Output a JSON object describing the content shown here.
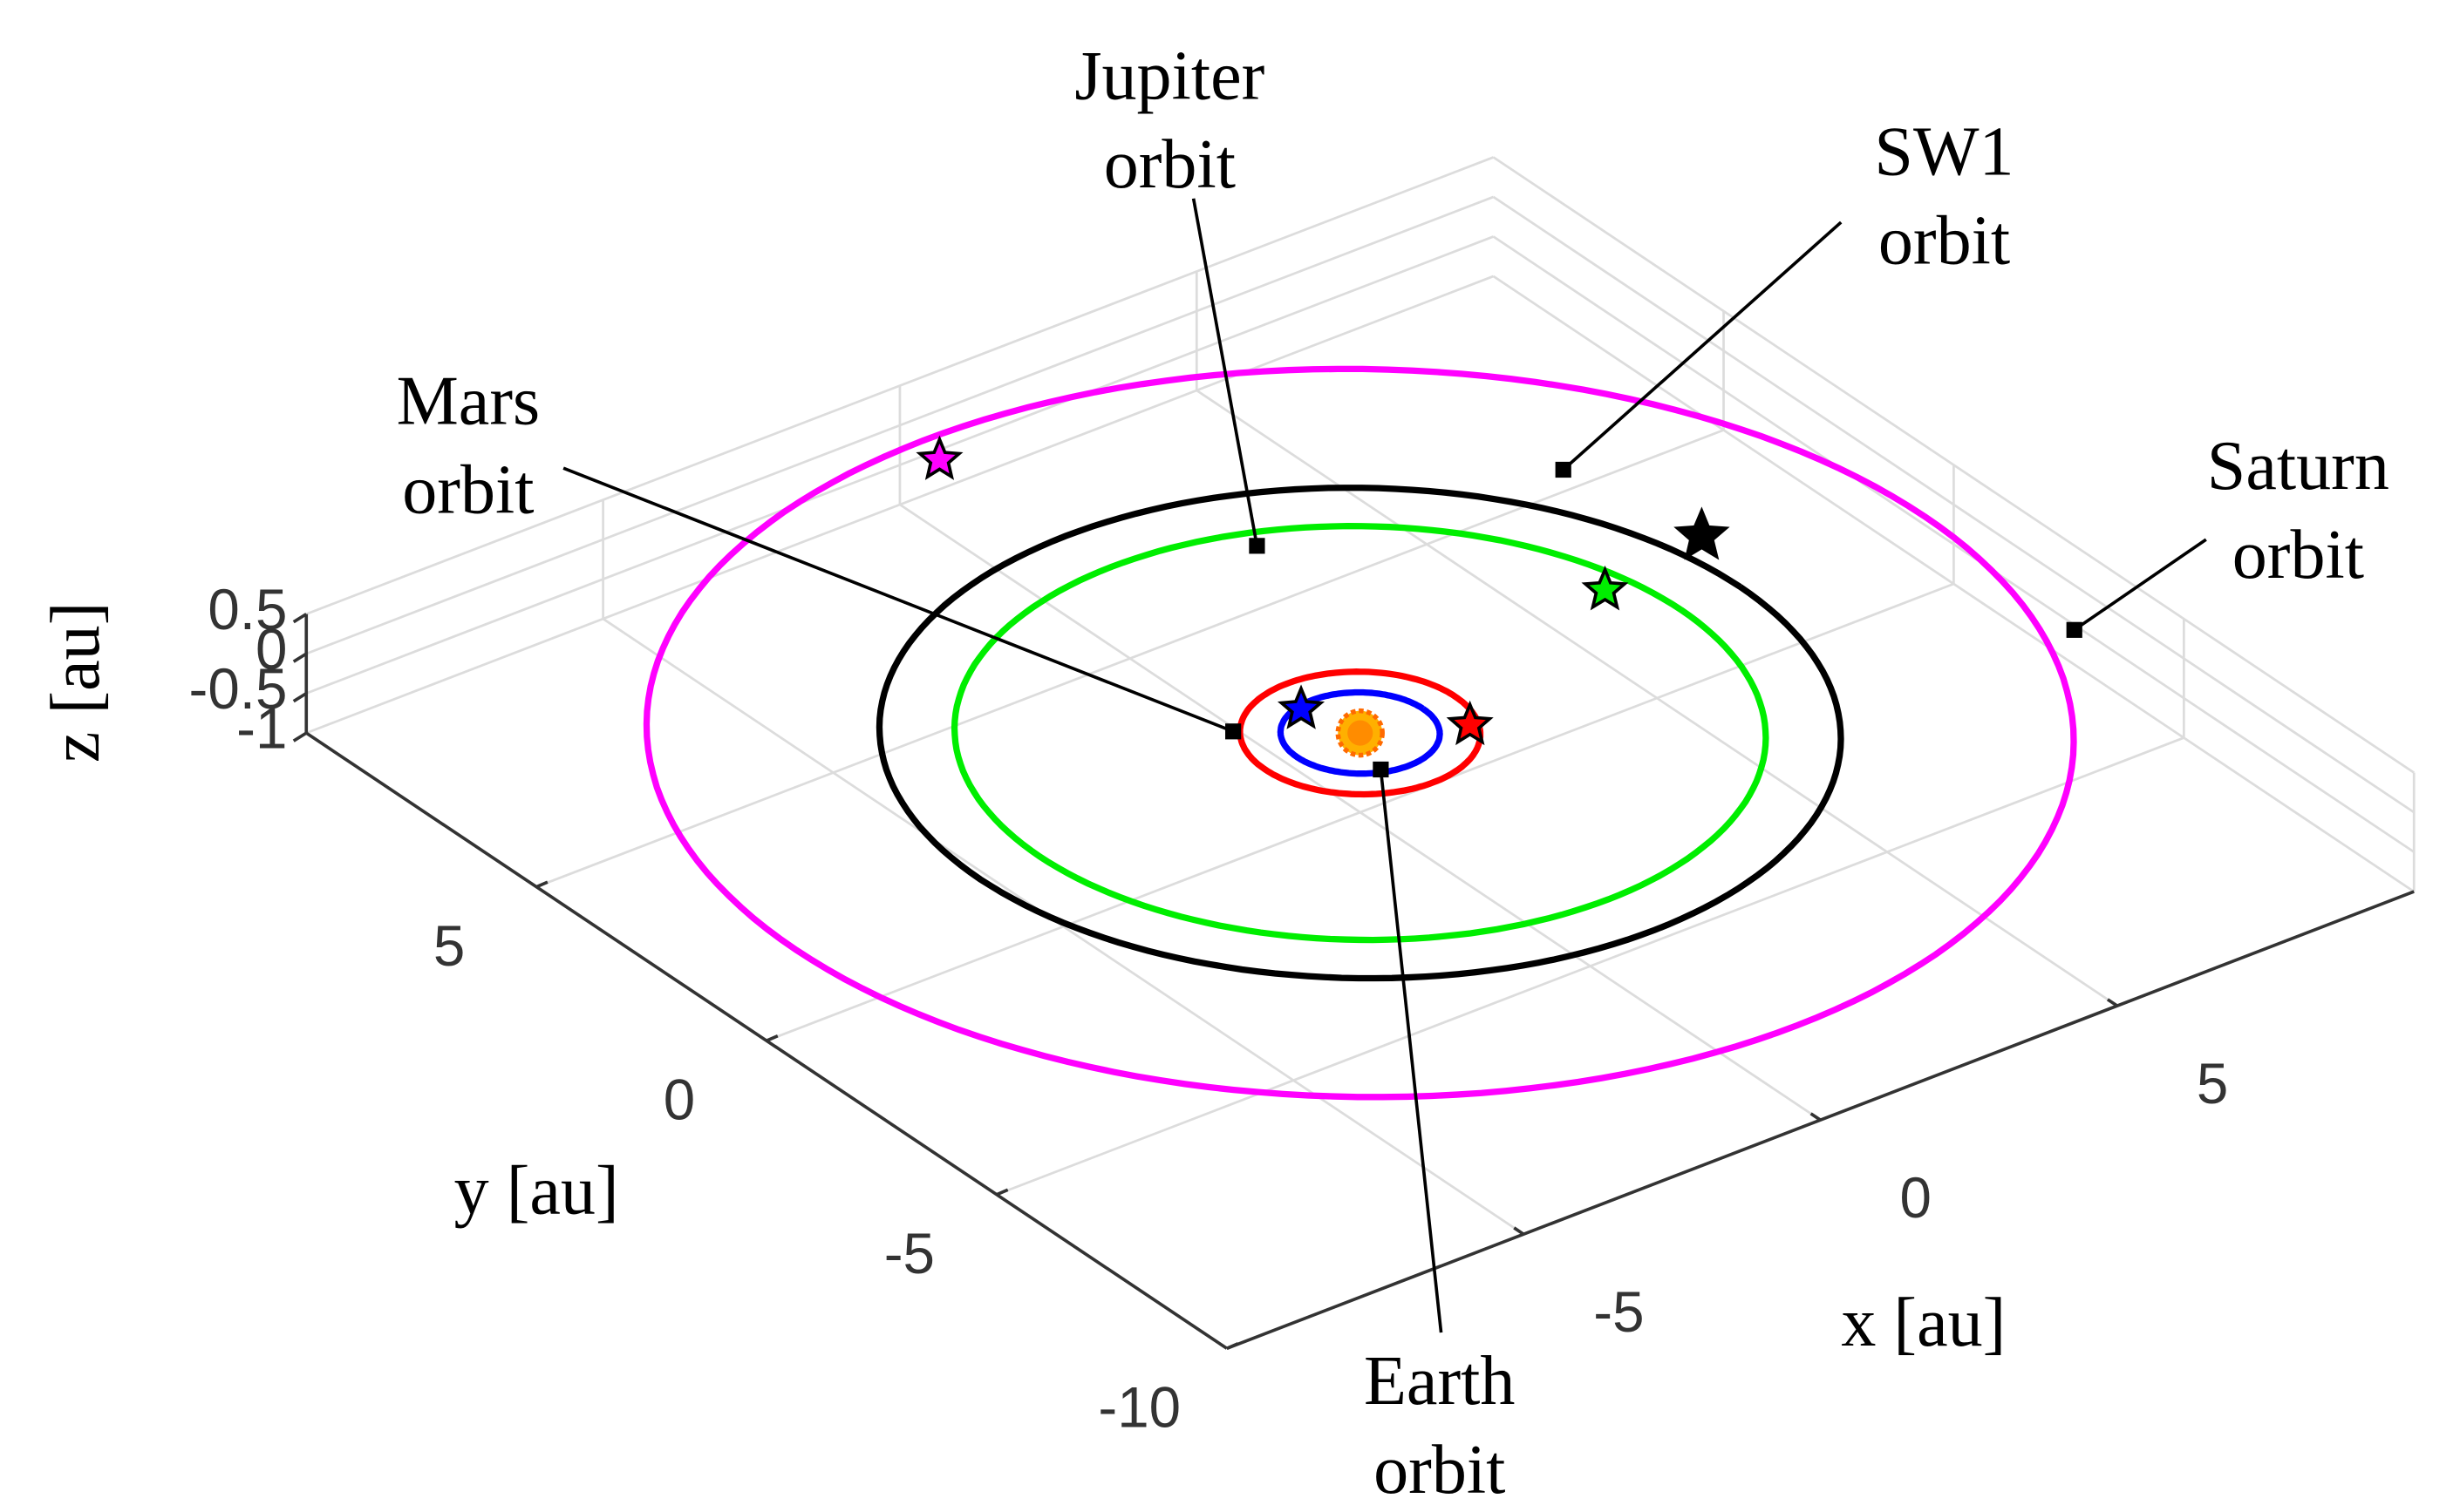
{
  "chart_data": {
    "type": "orbit3d",
    "xlabel": "x [au]",
    "ylabel": "y [au]",
    "zlabel": "z [au]",
    "xlim": [
      -10,
      10
    ],
    "ylim": [
      -10,
      10
    ],
    "zlim": [
      -1,
      0.5
    ],
    "xticks": [
      -5,
      0,
      5
    ],
    "yticks": [
      -10,
      -5,
      0,
      5
    ],
    "zticks": [
      -1,
      -0.5,
      0,
      0.5
    ],
    "grid": true,
    "series": [
      {
        "name": "Earth",
        "color": "#0000ff",
        "radius": 1.06,
        "position": [
          -0.25,
          0.96
        ]
      },
      {
        "name": "Mars",
        "color": "#ff0000",
        "radius": 1.6,
        "position": [
          1.3,
          -0.71
        ]
      },
      {
        "name": "Jupiter",
        "color": "#00ee00",
        "radius": 5.4,
        "position": [
          4.9,
          1.0
        ]
      },
      {
        "name": "SW1",
        "color": "#000000",
        "radius": 6.4,
        "position": [
          6.8,
          1.35
        ]
      },
      {
        "name": "Saturn",
        "color": "#ff00ff",
        "radius": 9.5,
        "position": [
          -0.13,
          8.97
        ]
      }
    ],
    "annotations": [
      {
        "text": [
          "Jupiter",
          "orbit"
        ]
      },
      {
        "text": [
          "SW1",
          "orbit"
        ]
      },
      {
        "text": [
          "Mars",
          "orbit"
        ]
      },
      {
        "text": [
          "Saturn",
          "orbit"
        ]
      },
      {
        "text": [
          "Earth",
          "orbit"
        ]
      }
    ]
  }
}
